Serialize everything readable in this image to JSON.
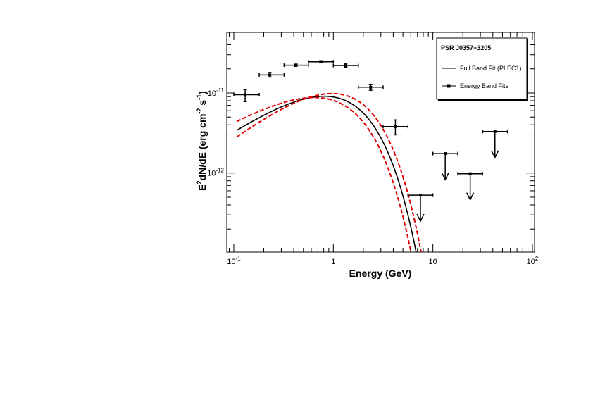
{
  "chart_data": {
    "type": "scatter",
    "title": "",
    "xlabel": "Energy (GeV)",
    "ylabel_parts": {
      "pre": "E",
      "pre_sup": "2",
      "mid": "dN/dE (erg cm",
      "mid_sup": "-2",
      "post": " s",
      "post_sup": "-1",
      "end": ")"
    },
    "x_scale": "log",
    "y_scale": "log",
    "xlim": [
      0.085,
      105
    ],
    "ylim": [
      1.03e-13,
      5.7e-11
    ],
    "x_ticks": [
      {
        "base": "10",
        "exp": "-1",
        "value": 0.1
      },
      {
        "base": "1",
        "exp": "",
        "value": 1
      },
      {
        "base": "10",
        "exp": "",
        "value": 10
      },
      {
        "base": "10",
        "exp": "2",
        "value": 100
      }
    ],
    "y_ticks": [
      {
        "base": "10",
        "exp": "-12",
        "value": 1e-12
      },
      {
        "base": "10",
        "exp": "-11",
        "value": 1e-11
      }
    ],
    "grid": false,
    "legend_position": "top-right",
    "legend": {
      "title": "PSR J0357+3205",
      "entries": [
        {
          "label": "Full Band Fit (PLEC1)",
          "style": "line"
        },
        {
          "label": "Energy Band Fits",
          "style": "line-with-marker"
        }
      ]
    },
    "series": [
      {
        "name": "Full Band Fit (PLEC1)",
        "kind": "model",
        "color": "#000000",
        "model": {
          "type": "PLEC1",
          "norm": 2.55e-11,
          "gamma": 1.15,
          "ecut": 0.95
        }
      },
      {
        "kind": "model_band_upper",
        "color": "#e00000",
        "model": {
          "type": "PLEC1",
          "norm": 2.62e-11,
          "gamma": 1.05,
          "ecut": 1.02
        }
      },
      {
        "kind": "model_band_lower",
        "color": "#e00000",
        "model": {
          "type": "PLEC1",
          "norm": 2.48e-11,
          "gamma": 1.28,
          "ecut": 0.89
        }
      },
      {
        "name": "Energy Band Fits",
        "kind": "points",
        "color": "#000000",
        "points": [
          {
            "e": 0.13,
            "elo": 0.1,
            "ehi": 0.18,
            "y": 9.5e-12,
            "ylo": 7.8e-12,
            "yhi": 1.1e-11
          },
          {
            "e": 0.23,
            "elo": 0.18,
            "ehi": 0.32,
            "y": 1.68e-11,
            "ylo": 1.58e-11,
            "yhi": 1.8e-11
          },
          {
            "e": 0.42,
            "elo": 0.32,
            "ehi": 0.56,
            "y": 2.22e-11,
            "ylo": 2.15e-11,
            "yhi": 2.29e-11
          },
          {
            "e": 0.75,
            "elo": 0.56,
            "ehi": 1.0,
            "y": 2.45e-11,
            "ylo": 2.38e-11,
            "yhi": 2.52e-11
          },
          {
            "e": 1.33,
            "elo": 1.0,
            "ehi": 1.78,
            "y": 2.2e-11,
            "ylo": 2.1e-11,
            "yhi": 2.3e-11
          },
          {
            "e": 2.37,
            "elo": 1.78,
            "ehi": 3.16,
            "y": 1.18e-11,
            "ylo": 1.08e-11,
            "yhi": 1.28e-11
          },
          {
            "e": 4.2,
            "elo": 3.16,
            "ehi": 5.62,
            "y": 3.8e-12,
            "ylo": 3e-12,
            "yhi": 4.6e-12
          }
        ]
      },
      {
        "name": "Upper limits",
        "kind": "upper_limits",
        "color": "#000000",
        "points": [
          {
            "e": 7.5,
            "elo": 5.62,
            "ehi": 10.0,
            "y": 5.3e-13
          },
          {
            "e": 13.3,
            "elo": 10.0,
            "ehi": 17.8,
            "y": 1.75e-12
          },
          {
            "e": 23.7,
            "elo": 17.8,
            "ehi": 31.6,
            "y": 9.8e-13
          },
          {
            "e": 42.0,
            "elo": 31.6,
            "ehi": 56.2,
            "y": 3.3e-12
          }
        ]
      }
    ]
  }
}
